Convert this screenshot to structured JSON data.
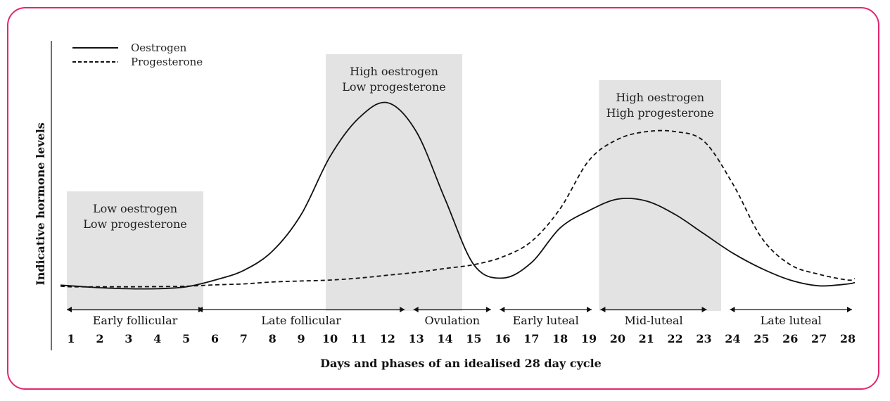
{
  "chart_data": {
    "type": "line",
    "xlabel": "Days and phases of an idealised 28 day cycle",
    "ylabel": "Indicative hormone levels",
    "x": [
      1,
      2,
      3,
      4,
      5,
      6,
      7,
      8,
      9,
      10,
      11,
      12,
      13,
      14,
      15,
      16,
      17,
      18,
      19,
      20,
      21,
      22,
      23,
      24,
      25,
      26,
      27,
      28
    ],
    "tick_labels": [
      "1",
      "2",
      "3",
      "4",
      "5",
      "6",
      "7",
      "8",
      "9",
      "10",
      "11",
      "12",
      "13",
      "14",
      "15",
      "16",
      "17",
      "18",
      "19",
      "20",
      "21",
      "22",
      "23",
      "24",
      "25",
      "26",
      "27",
      "28"
    ],
    "ylim": [
      0,
      100
    ],
    "series": [
      {
        "name": "Oestrogen",
        "style": "solid",
        "values": [
          5,
          4,
          3.5,
          3.5,
          4.5,
          8,
          13,
          23,
          42,
          72,
          92,
          100,
          85,
          50,
          16,
          9,
          17,
          35,
          44,
          50,
          49,
          42,
          32,
          22,
          14,
          8,
          5,
          6
        ]
      },
      {
        "name": "Progesterone",
        "style": "dashed",
        "values": [
          4.5,
          4.5,
          4.5,
          4.6,
          4.8,
          5.5,
          6,
          7,
          7.5,
          8,
          9,
          10.5,
          12,
          14,
          16,
          20,
          28,
          45,
          70,
          81,
          85,
          85,
          80,
          58,
          30,
          16,
          11,
          8
        ]
      }
    ],
    "bands": [
      {
        "from": 1,
        "to": 5.5,
        "label_lines": [
          "Low oestrogen",
          "Low progesterone"
        ]
      },
      {
        "from": 10,
        "to": 14.5,
        "label_lines": [
          "High oestrogen",
          "Low progesterone"
        ]
      },
      {
        "from": 19.5,
        "to": 23.5,
        "label_lines": [
          "High oestrogen",
          "High progesterone"
        ]
      }
    ],
    "phases": [
      {
        "label": "Early follicular",
        "from": 1,
        "to": 5.5
      },
      {
        "label": "Late follicular",
        "from": 5.5,
        "to": 12.5
      },
      {
        "label": "Ovulation",
        "from": 13,
        "to": 15.5
      },
      {
        "label": "Early luteal",
        "from": 16,
        "to": 19
      },
      {
        "label": "Mid-luteal",
        "from": 19.5,
        "to": 23
      },
      {
        "label": "Late luteal",
        "from": 24,
        "to": 28
      }
    ],
    "legend": {
      "position": "top-left",
      "entries": [
        "Oestrogen",
        "Progesterone"
      ]
    },
    "grid": false,
    "colors": {
      "line": "#111111",
      "band": "#e3e3e3",
      "frame": "#e3266f"
    }
  }
}
